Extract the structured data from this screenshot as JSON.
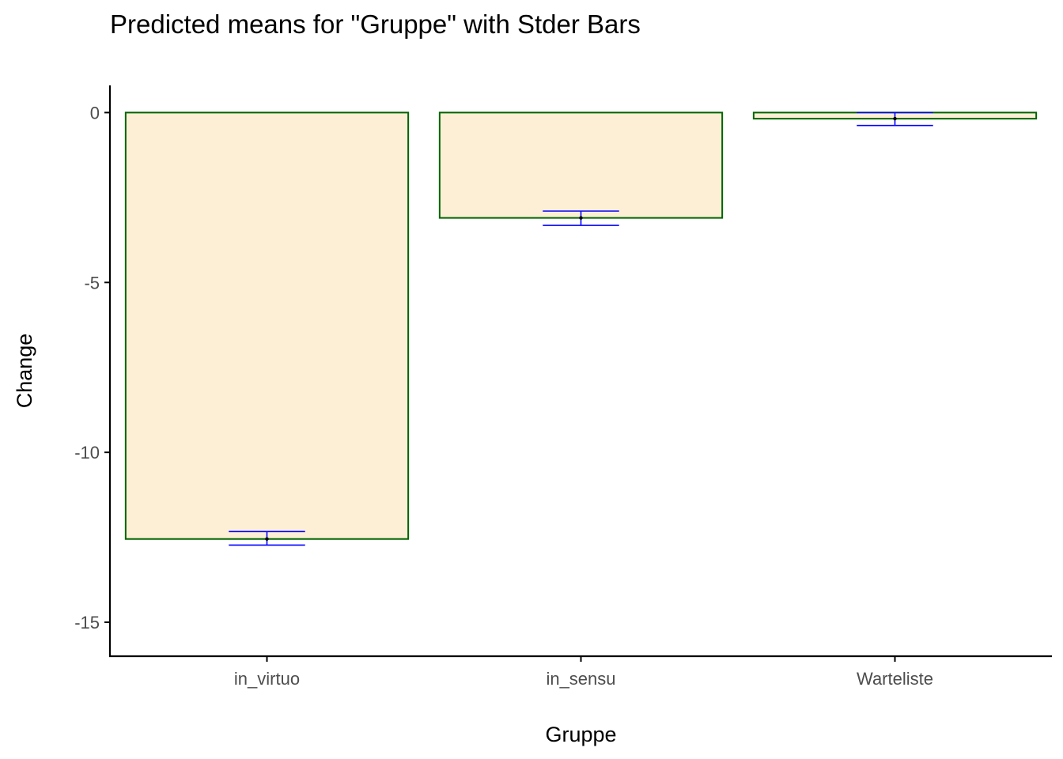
{
  "chart_data": {
    "type": "bar",
    "title": "Predicted means for \"Gruppe\" with Stder Bars",
    "xlabel": "Gruppe",
    "ylabel": "Change",
    "categories": [
      "in_virtuo",
      "in_sensu",
      "Warteliste"
    ],
    "values": [
      -12.55,
      -3.1,
      -0.18
    ],
    "error_bars": [
      {
        "lower": -12.73,
        "upper": -12.33
      },
      {
        "lower": -3.32,
        "upper": -2.9
      },
      {
        "lower": -0.38,
        "upper": 0.0
      }
    ],
    "ylim": [
      -16.0,
      0.8
    ],
    "yticks": [
      0,
      -5,
      -10,
      -15
    ],
    "ytick_labels": [
      "0",
      "-5",
      "-10",
      "-15"
    ],
    "grid": false,
    "legend": "none",
    "colors": {
      "bar_fill": "#FDEFD5",
      "bar_stroke": "#006400",
      "error_bar": "#0000FF",
      "mean_marker": "#000000",
      "axis": "#000000",
      "tick_label": "#4d4d4d"
    }
  }
}
